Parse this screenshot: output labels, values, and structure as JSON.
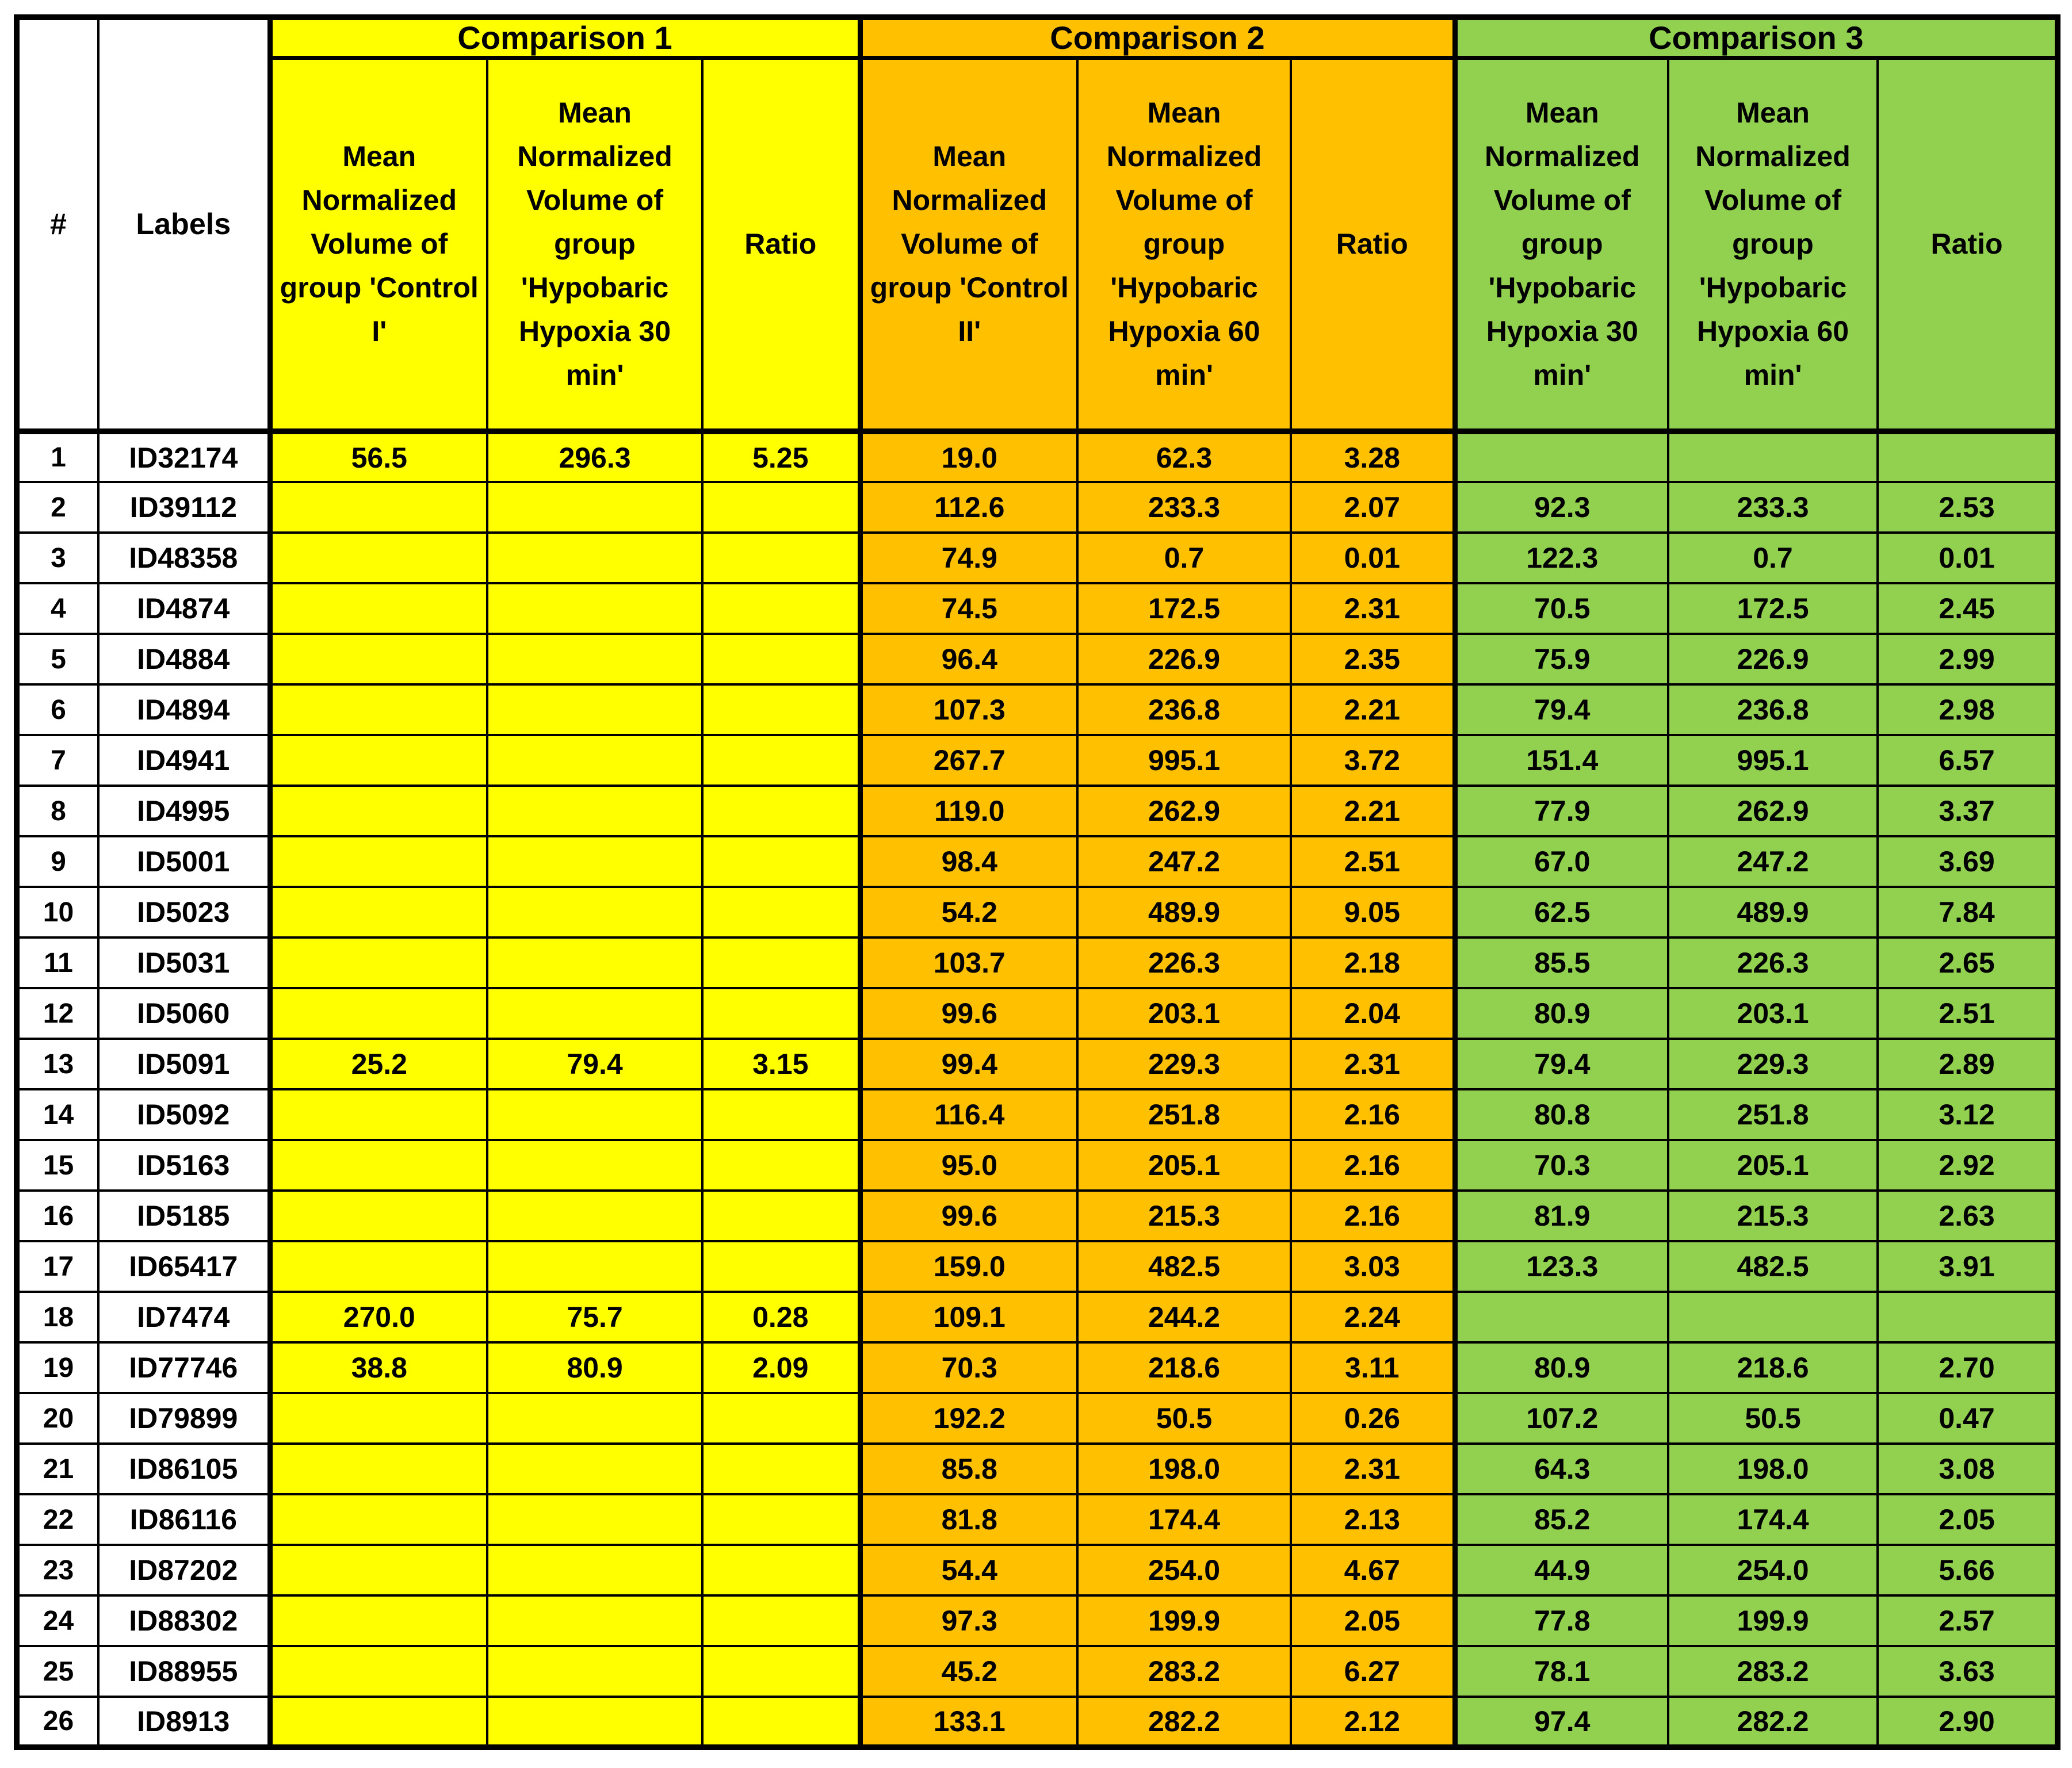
{
  "chart_data": {
    "type": "table",
    "corner_headers": [
      "#",
      "Labels"
    ],
    "groups": [
      {
        "title": "Comparison 1",
        "color": "#FFFF00"
      },
      {
        "title": "Comparison 2",
        "color": "#FFC000"
      },
      {
        "title": "Comparison 3",
        "color": "#92D050"
      }
    ],
    "column_headers": [
      "Mean Normalized Volume of group 'Control I'",
      "Mean Normalized Volume of group 'Hypobaric Hypoxia 30 min'",
      "Ratio",
      "Mean Normalized Volume of group 'Control II'",
      "Mean Normalized Volume of group 'Hypobaric Hypoxia 60 min'",
      "Ratio",
      "Mean Normalized Volume of group 'Hypobaric Hypoxia 30 min'",
      "Mean Normalized Volume of group 'Hypobaric Hypoxia 60 min'",
      "Ratio"
    ],
    "rows": [
      [
        "1",
        "ID32174",
        "56.5",
        "296.3",
        "5.25",
        "19.0",
        "62.3",
        "3.28",
        "",
        "",
        ""
      ],
      [
        "2",
        "ID39112",
        "",
        "",
        "",
        "112.6",
        "233.3",
        "2.07",
        "92.3",
        "233.3",
        "2.53"
      ],
      [
        "3",
        "ID48358",
        "",
        "",
        "",
        "74.9",
        "0.7",
        "0.01",
        "122.3",
        "0.7",
        "0.01"
      ],
      [
        "4",
        "ID4874",
        "",
        "",
        "",
        "74.5",
        "172.5",
        "2.31",
        "70.5",
        "172.5",
        "2.45"
      ],
      [
        "5",
        "ID4884",
        "",
        "",
        "",
        "96.4",
        "226.9",
        "2.35",
        "75.9",
        "226.9",
        "2.99"
      ],
      [
        "6",
        "ID4894",
        "",
        "",
        "",
        "107.3",
        "236.8",
        "2.21",
        "79.4",
        "236.8",
        "2.98"
      ],
      [
        "7",
        "ID4941",
        "",
        "",
        "",
        "267.7",
        "995.1",
        "3.72",
        "151.4",
        "995.1",
        "6.57"
      ],
      [
        "8",
        "ID4995",
        "",
        "",
        "",
        "119.0",
        "262.9",
        "2.21",
        "77.9",
        "262.9",
        "3.37"
      ],
      [
        "9",
        "ID5001",
        "",
        "",
        "",
        "98.4",
        "247.2",
        "2.51",
        "67.0",
        "247.2",
        "3.69"
      ],
      [
        "10",
        "ID5023",
        "",
        "",
        "",
        "54.2",
        "489.9",
        "9.05",
        "62.5",
        "489.9",
        "7.84"
      ],
      [
        "11",
        "ID5031",
        "",
        "",
        "",
        "103.7",
        "226.3",
        "2.18",
        "85.5",
        "226.3",
        "2.65"
      ],
      [
        "12",
        "ID5060",
        "",
        "",
        "",
        "99.6",
        "203.1",
        "2.04",
        "80.9",
        "203.1",
        "2.51"
      ],
      [
        "13",
        "ID5091",
        "25.2",
        "79.4",
        "3.15",
        "99.4",
        "229.3",
        "2.31",
        "79.4",
        "229.3",
        "2.89"
      ],
      [
        "14",
        "ID5092",
        "",
        "",
        "",
        "116.4",
        "251.8",
        "2.16",
        "80.8",
        "251.8",
        "3.12"
      ],
      [
        "15",
        "ID5163",
        "",
        "",
        "",
        "95.0",
        "205.1",
        "2.16",
        "70.3",
        "205.1",
        "2.92"
      ],
      [
        "16",
        "ID5185",
        "",
        "",
        "",
        "99.6",
        "215.3",
        "2.16",
        "81.9",
        "215.3",
        "2.63"
      ],
      [
        "17",
        "ID65417",
        "",
        "",
        "",
        "159.0",
        "482.5",
        "3.03",
        "123.3",
        "482.5",
        "3.91"
      ],
      [
        "18",
        "ID7474",
        "270.0",
        "75.7",
        "0.28",
        "109.1",
        "244.2",
        "2.24",
        "",
        "",
        ""
      ],
      [
        "19",
        "ID77746",
        "38.8",
        "80.9",
        "2.09",
        "70.3",
        "218.6",
        "3.11",
        "80.9",
        "218.6",
        "2.70"
      ],
      [
        "20",
        "ID79899",
        "",
        "",
        "",
        "192.2",
        "50.5",
        "0.26",
        "107.2",
        "50.5",
        "0.47"
      ],
      [
        "21",
        "ID86105",
        "",
        "",
        "",
        "85.8",
        "198.0",
        "2.31",
        "64.3",
        "198.0",
        "3.08"
      ],
      [
        "22",
        "ID86116",
        "",
        "",
        "",
        "81.8",
        "174.4",
        "2.13",
        "85.2",
        "174.4",
        "2.05"
      ],
      [
        "23",
        "ID87202",
        "",
        "",
        "",
        "54.4",
        "254.0",
        "4.67",
        "44.9",
        "254.0",
        "5.66"
      ],
      [
        "24",
        "ID88302",
        "",
        "",
        "",
        "97.3",
        "199.9",
        "2.05",
        "77.8",
        "199.9",
        "2.57"
      ],
      [
        "25",
        "ID88955",
        "",
        "",
        "",
        "45.2",
        "283.2",
        "6.27",
        "78.1",
        "283.2",
        "3.63"
      ],
      [
        "26",
        "ID8913",
        "",
        "",
        "",
        "133.1",
        "282.2",
        "2.12",
        "97.4",
        "282.2",
        "2.90"
      ]
    ]
  },
  "colors": {
    "comparison1_fill": "#FFFF00",
    "comparison2_fill": "#FFC000",
    "comparison3_fill": "#92D050",
    "grid_border": "#000000",
    "text": "#000000",
    "background": "#FFFFFF"
  }
}
